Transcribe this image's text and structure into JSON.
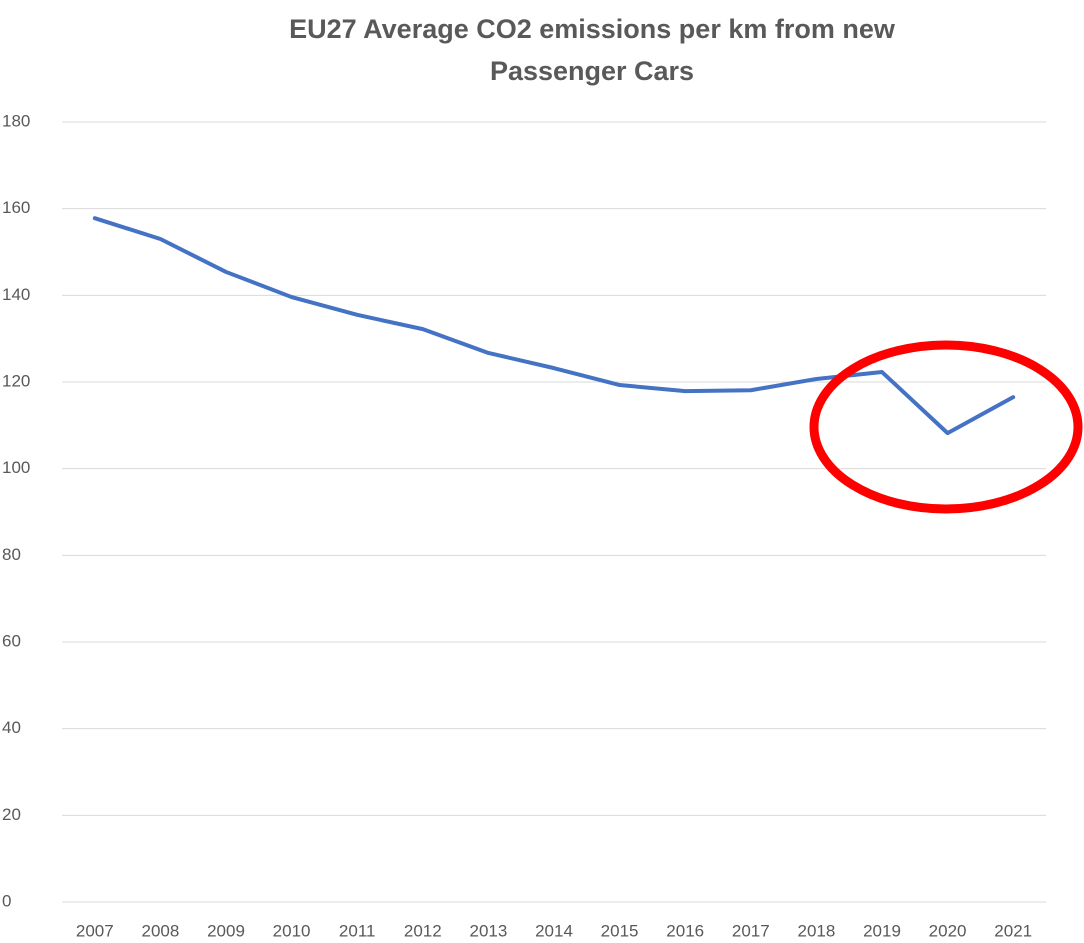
{
  "chart_data": {
    "type": "line",
    "title": "EU27 Average CO2 emissions per km from new Passenger Cars",
    "categories": [
      "2007",
      "2008",
      "2009",
      "2010",
      "2011",
      "2012",
      "2013",
      "2014",
      "2015",
      "2016",
      "2017",
      "2018",
      "2019",
      "2020",
      "2021"
    ],
    "series": [
      {
        "color": "#4472c4",
        "values": [
          157.8,
          153.0,
          145.4,
          139.6,
          135.5,
          132.2,
          126.7,
          123.2,
          119.3,
          117.9,
          118.1,
          120.7,
          122.3,
          108.2,
          116.5
        ]
      }
    ],
    "ylim": [
      0,
      180
    ],
    "yticks": [
      0,
      20,
      40,
      60,
      80,
      100,
      120,
      140,
      160,
      180
    ],
    "grid": true
  }
}
